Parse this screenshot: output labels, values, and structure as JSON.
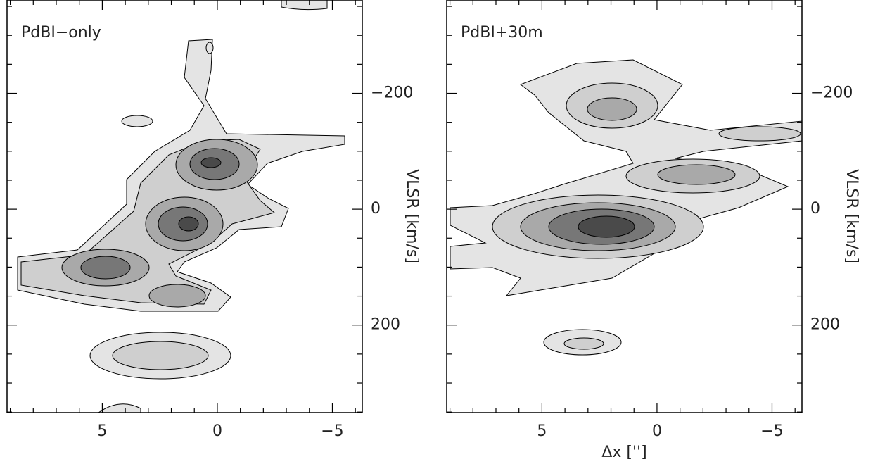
{
  "chart_data": [
    {
      "type": "contour",
      "title": "PdBI−only",
      "ylabel": "VLSR [km/s]",
      "xlim": [
        9.14,
        -6.3
      ],
      "ylim": [
        -361,
        351
      ],
      "xticks": [
        5,
        0,
        {
          "value": -5,
          "label": "−5"
        }
      ],
      "xminorticks": [
        9,
        8,
        7,
        6,
        4,
        3,
        2,
        1,
        -1,
        -2,
        -3,
        -4,
        -6
      ],
      "yticks": [
        {
          "value": -200,
          "label": "−200"
        },
        0,
        200
      ],
      "yminorticks": [
        -350,
        -300,
        -250,
        -150,
        -100,
        -50,
        50,
        100,
        150,
        250,
        300,
        350
      ]
    },
    {
      "type": "contour",
      "title": "PdBI+30m",
      "ylabel": "VLSR [km/s]",
      "xlabel": "Δx ['']",
      "xlim": [
        9.14,
        -6.3
      ],
      "ylim": [
        -361,
        351
      ],
      "xticks": [
        5,
        0,
        {
          "value": -5,
          "label": "−5"
        }
      ],
      "xminorticks": [
        9,
        8,
        7,
        6,
        4,
        3,
        2,
        1,
        -1,
        -2,
        -3,
        -4,
        -6
      ],
      "yticks": [
        {
          "value": -200,
          "label": "−200"
        },
        0,
        200
      ],
      "yminorticks": [
        -350,
        -300,
        -250,
        -150,
        -100,
        -50,
        50,
        100,
        150,
        250,
        300,
        350
      ]
    }
  ]
}
